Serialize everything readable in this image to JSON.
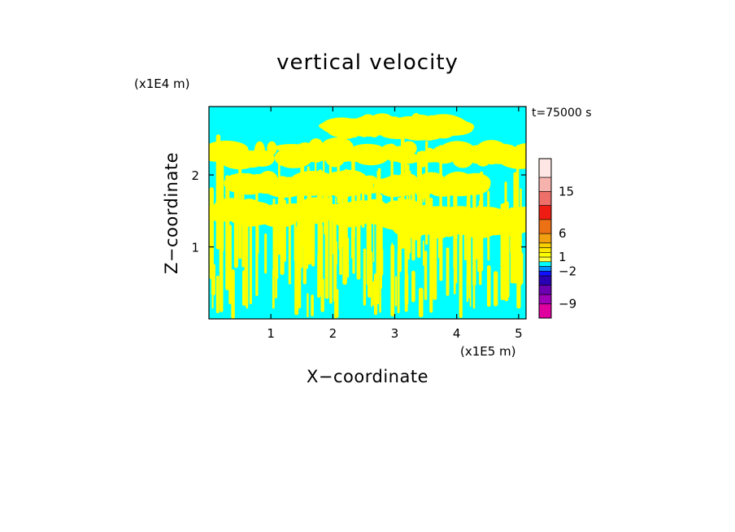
{
  "chart_data": {
    "type": "heatmap",
    "title": "vertical velocity",
    "xlabel": "X−coordinate",
    "ylabel": "Z−coordinate",
    "x_unit_label": "(x1E5 m)",
    "y_unit_label": "(x1E4 m)",
    "time_label": "t=75000 s",
    "xlim": [
      0,
      5.12
    ],
    "ylim": [
      0,
      2.95
    ],
    "x_ticks": [
      1,
      2,
      3,
      4,
      5
    ],
    "x_tick_labels": [
      "1",
      "2",
      "3",
      "4",
      "5"
    ],
    "y_ticks": [
      1,
      2
    ],
    "y_tick_labels": [
      "1",
      "2"
    ],
    "field_colors": {
      "positive": "#ffff00",
      "negative": "#00ffff"
    },
    "colorbar": {
      "range": [
        -12,
        22
      ],
      "tick_values": [
        15,
        6,
        1,
        -2,
        -9
      ],
      "tick_labels": [
        "15",
        "6",
        "1",
        "−2",
        "−9"
      ],
      "bands": [
        {
          "from": 18,
          "to": 22,
          "color": "#fde6e3"
        },
        {
          "from": 15,
          "to": 18,
          "color": "#f6b3ad"
        },
        {
          "from": 12,
          "to": 15,
          "color": "#ee6f6a"
        },
        {
          "from": 9,
          "to": 12,
          "color": "#ee1c12"
        },
        {
          "from": 6,
          "to": 9,
          "color": "#ec7014"
        },
        {
          "from": 4,
          "to": 6,
          "color": "#f2a010"
        },
        {
          "from": 3,
          "to": 4,
          "color": "#f8d000"
        },
        {
          "from": 2,
          "to": 3,
          "color": "#ffe800"
        },
        {
          "from": 1,
          "to": 2,
          "color": "#ffff00"
        },
        {
          "from": 0,
          "to": 1,
          "color": "#ffff40"
        },
        {
          "from": -1,
          "to": 0,
          "color": "#00ffff"
        },
        {
          "from": -2,
          "to": -1,
          "color": "#0090ff"
        },
        {
          "from": -3,
          "to": -2,
          "color": "#1010ff"
        },
        {
          "from": -5,
          "to": -3,
          "color": "#2a00b4"
        },
        {
          "from": -7,
          "to": -5,
          "color": "#6a00b0"
        },
        {
          "from": -9,
          "to": -7,
          "color": "#a000b8"
        },
        {
          "from": -12,
          "to": -9,
          "color": "#e000a0"
        }
      ]
    }
  }
}
